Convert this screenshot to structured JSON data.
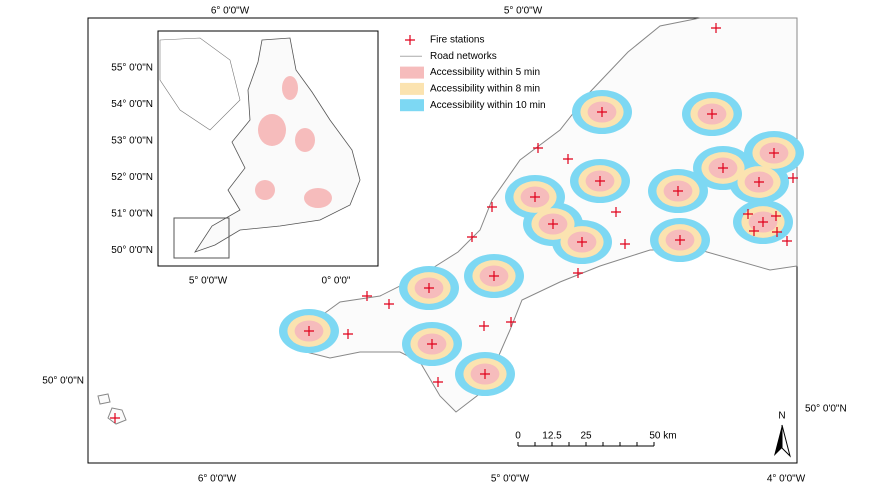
{
  "map": {
    "top_axis_labels": [
      "6° 0'0\"W",
      "5° 0'0\"W"
    ],
    "bottom_axis_labels": [
      "6° 0'0\"W",
      "5° 0'0\"W",
      "4° 0'0\"W"
    ],
    "left_axis_labels": [
      "50° 0'0\"N"
    ],
    "right_axis_labels": [
      "50° 0'0\"N"
    ],
    "legend": [
      "Fire stations",
      "Road networks",
      "Accessibility within 5 min",
      "Accessibility within 8 min",
      "Accessibility within 10 min"
    ],
    "scale_bar": [
      "0",
      "12.5",
      "25",
      "50 km"
    ],
    "north_arrow": "N",
    "inset": {
      "left_axis_labels": [
        "55° 0'0\"N",
        "54° 0'0\"N",
        "53° 0'0\"N",
        "52° 0'0\"N",
        "51° 0'0\"N",
        "50° 0'0\"N"
      ],
      "bottom_axis_labels": [
        "5° 0'0\"W",
        "0° 0'0\""
      ]
    }
  }
}
